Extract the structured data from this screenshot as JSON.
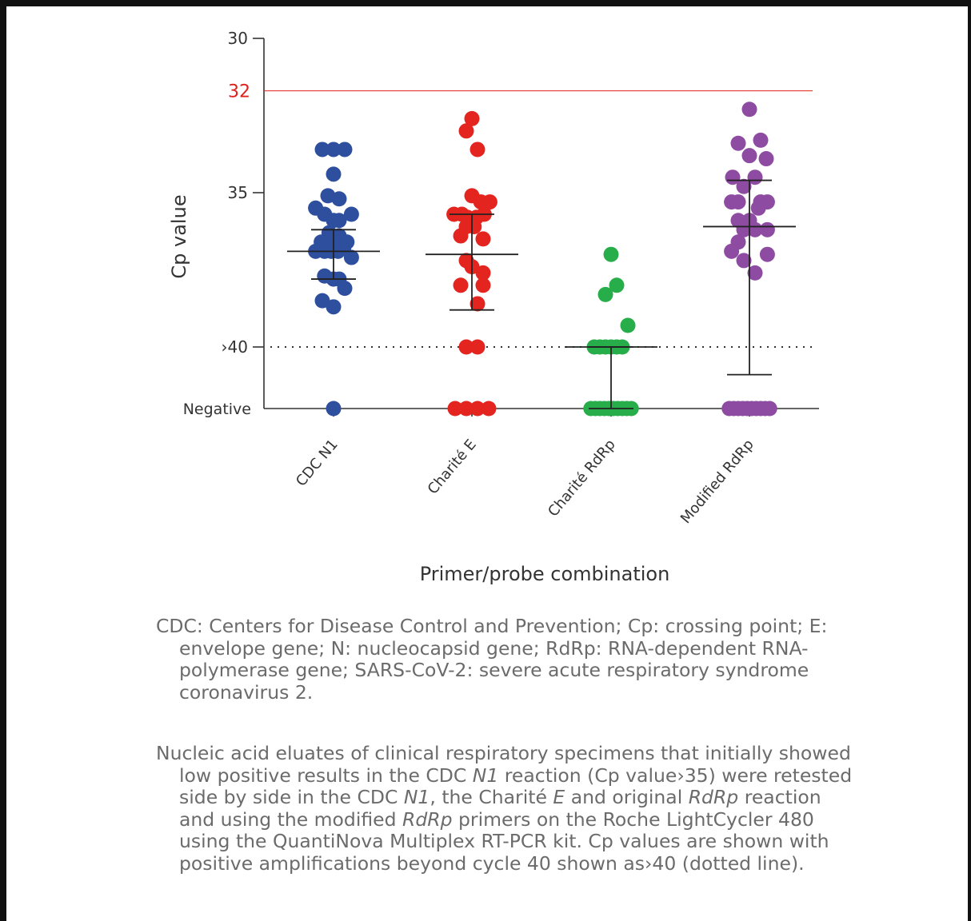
{
  "chart_data": {
    "type": "scatter",
    "title": "",
    "xlabel": "Primer/probe combination",
    "ylabel": "Cp value",
    "y_axis_inverted": true,
    "ylim": [
      30,
      42
    ],
    "y_ticks": [
      {
        "value": 30,
        "label": "30",
        "color": "#333333"
      },
      {
        "value": 35,
        "label": "35",
        "color": "#333333"
      },
      {
        "value": 40,
        "label": "›40",
        "color": "#333333"
      },
      {
        "value": 42,
        "label": "Negative",
        "color": "#333333"
      }
    ],
    "reference_lines": [
      {
        "value": 31.7,
        "label": "32",
        "color": "#e0201a",
        "style": "solid"
      },
      {
        "value": 40,
        "label": "",
        "color": "#333333",
        "style": "dotted"
      }
    ],
    "categories": [
      "CDC N1",
      "Charité E",
      "Charité RdRp",
      "Modified RdRp"
    ],
    "series": [
      {
        "category": "CDC N1",
        "color": "#2e4e9e",
        "points": [
          [
            -0.5,
            33.6
          ],
          [
            0,
            33.6
          ],
          [
            0.5,
            33.6
          ],
          [
            0,
            34.4
          ],
          [
            -0.25,
            35.1
          ],
          [
            0.25,
            35.2
          ],
          [
            -0.8,
            35.5
          ],
          [
            -0.4,
            35.7
          ],
          [
            0.0,
            35.9
          ],
          [
            0.25,
            35.9
          ],
          [
            0.8,
            35.7
          ],
          [
            -0.2,
            36.3
          ],
          [
            0.25,
            36.4
          ],
          [
            -0.55,
            36.6
          ],
          [
            -0.25,
            36.7
          ],
          [
            0.0,
            36.7
          ],
          [
            0.35,
            36.7
          ],
          [
            0.6,
            36.6
          ],
          [
            -0.8,
            36.9
          ],
          [
            -0.4,
            36.9
          ],
          [
            -0.1,
            36.9
          ],
          [
            0.2,
            36.9
          ],
          [
            0.45,
            36.8
          ],
          [
            0.8,
            37.1
          ],
          [
            -0.4,
            37.7
          ],
          [
            0.0,
            37.8
          ],
          [
            0.25,
            37.8
          ],
          [
            0.5,
            38.1
          ],
          [
            -0.5,
            38.5
          ],
          [
            0.0,
            38.7
          ],
          [
            0.0,
            42
          ]
        ],
        "mean": 36.9,
        "error": [
          36.2,
          37.8
        ]
      },
      {
        "category": "Charité E",
        "color": "#e4251f",
        "points": [
          [
            0.0,
            32.6
          ],
          [
            -0.25,
            33.0
          ],
          [
            0.25,
            33.6
          ],
          [
            0.0,
            35.1
          ],
          [
            -0.45,
            35.7
          ],
          [
            -0.8,
            35.7
          ],
          [
            -0.2,
            35.8
          ],
          [
            0.2,
            35.8
          ],
          [
            0.55,
            35.7
          ],
          [
            0.8,
            35.3
          ],
          [
            0.4,
            35.3
          ],
          [
            -0.25,
            36.1
          ],
          [
            0.1,
            36.1
          ],
          [
            -0.5,
            36.4
          ],
          [
            0.5,
            36.5
          ],
          [
            -0.25,
            37.2
          ],
          [
            0.0,
            37.4
          ],
          [
            0.5,
            37.6
          ],
          [
            -0.5,
            38.0
          ],
          [
            0.5,
            38.0
          ],
          [
            0.25,
            38.6
          ],
          [
            -0.25,
            40
          ],
          [
            0.25,
            40
          ],
          [
            -0.75,
            42
          ],
          [
            -0.25,
            42
          ],
          [
            0.25,
            42
          ],
          [
            0.75,
            42
          ]
        ],
        "mean": 37.0,
        "error": [
          35.7,
          38.8
        ]
      },
      {
        "category": "Charité RdRp",
        "color": "#27ae4a",
        "points": [
          [
            0.0,
            37.0
          ],
          [
            0.25,
            38.0
          ],
          [
            -0.25,
            38.3
          ],
          [
            0.75,
            39.3
          ],
          [
            -0.75,
            40
          ],
          [
            -0.5,
            40
          ],
          [
            -0.25,
            40
          ],
          [
            0.0,
            40
          ],
          [
            0.25,
            40
          ],
          [
            0.5,
            40
          ],
          [
            -0.9,
            42
          ],
          [
            -0.7,
            42
          ],
          [
            -0.5,
            42
          ],
          [
            -0.3,
            42
          ],
          [
            -0.1,
            42
          ],
          [
            0.1,
            42
          ],
          [
            0.3,
            42
          ],
          [
            0.5,
            42
          ],
          [
            0.7,
            42
          ],
          [
            0.9,
            42
          ]
        ],
        "mean": 40.0,
        "error": [
          40.0,
          42.0
        ]
      },
      {
        "category": "Modified RdRp",
        "color": "#8e4ba2",
        "points": [
          [
            0.0,
            32.3
          ],
          [
            -0.5,
            33.4
          ],
          [
            0.5,
            33.3
          ],
          [
            0.0,
            33.8
          ],
          [
            0.75,
            33.9
          ],
          [
            -0.75,
            34.5
          ],
          [
            0.25,
            34.5
          ],
          [
            -0.25,
            34.8
          ],
          [
            -0.8,
            35.3
          ],
          [
            -0.5,
            35.3
          ],
          [
            0.5,
            35.3
          ],
          [
            0.8,
            35.3
          ],
          [
            0.4,
            35.5
          ],
          [
            -0.5,
            35.9
          ],
          [
            0.0,
            35.9
          ],
          [
            -0.25,
            36.2
          ],
          [
            0.25,
            36.2
          ],
          [
            0.8,
            36.2
          ],
          [
            -0.5,
            36.6
          ],
          [
            -0.8,
            36.9
          ],
          [
            0.8,
            37.0
          ],
          [
            -0.25,
            37.2
          ],
          [
            0.25,
            37.6
          ],
          [
            -0.9,
            42
          ],
          [
            -0.7,
            42
          ],
          [
            -0.5,
            42
          ],
          [
            -0.3,
            42
          ],
          [
            -0.1,
            42
          ],
          [
            0.1,
            42
          ],
          [
            0.3,
            42
          ],
          [
            0.5,
            42
          ],
          [
            0.7,
            42
          ],
          [
            0.9,
            42
          ]
        ],
        "mean": 36.1,
        "error": [
          34.6,
          40.9
        ]
      }
    ]
  },
  "caption": {
    "abbreviations": "CDC: Centers for Disease Control and Prevention; Cp: crossing point; E: envelope gene; N: nucleocapsid gene; RdRp: RNA-dependent RNA-polymerase gene; SARS-CoV-2: severe acute respiratory syndrome coronavirus 2.",
    "p2_a": "Nucleic acid eluates of clinical respiratory specimens that initially showed low positive results in the CDC ",
    "p2_b": "N1",
    "p2_c": " reaction (Cp value›35) were retested side by side in the CDC ",
    "p2_d": "N1",
    "p2_e": ", the Charité ",
    "p2_f": "E",
    "p2_g": " and original ",
    "p2_h": "RdRp",
    "p2_i": " reaction and using the modified ",
    "p2_j": "RdRp",
    "p2_k": " primers on the Roche LightCycler 480 using the QuantiNova Multiplex RT-PCR kit. Cp values are shown with positive amplifications beyond cycle 40 shown as›40 (dotted line)."
  }
}
